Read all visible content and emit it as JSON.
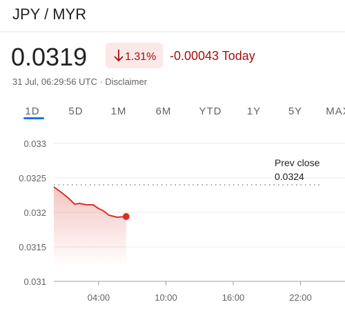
{
  "header": {
    "pair": "JPY / MYR",
    "price": "0.0319",
    "change_percent": "1.31%",
    "change_today": "-0.00043 Today",
    "timestamp": "31 Jul, 06:29:56 UTC · Disclaimer"
  },
  "tabs": [
    "1D",
    "5D",
    "1M",
    "6M",
    "YTD",
    "1Y",
    "5Y",
    "MAX"
  ],
  "chart_data": {
    "type": "line",
    "x": [
      0,
      0.75,
      1.35,
      1.85,
      2.3,
      2.9,
      3.5,
      3.95,
      4.45,
      4.9,
      5.65,
      6.45
    ],
    "series": [
      {
        "color": "#d93025",
        "values": [
          0.03237,
          0.03228,
          0.0322,
          0.03212,
          0.03213,
          0.03211,
          0.03211,
          0.03206,
          0.03202,
          0.03196,
          0.03193,
          0.03194
        ]
      }
    ],
    "xlim": [
      0,
      24
    ],
    "xticks": [
      {
        "value": 4,
        "label": "04:00"
      },
      {
        "value": 10,
        "label": "10:00"
      },
      {
        "value": 16,
        "label": "16:00"
      },
      {
        "value": 22,
        "label": "22:00"
      }
    ],
    "ylim": [
      0.031,
      0.033
    ],
    "yticks": [
      0.031,
      0.0315,
      0.032,
      0.0325,
      0.033
    ],
    "grid": true,
    "prev_close": {
      "label": "Prev close",
      "value": 0.0324
    }
  }
}
